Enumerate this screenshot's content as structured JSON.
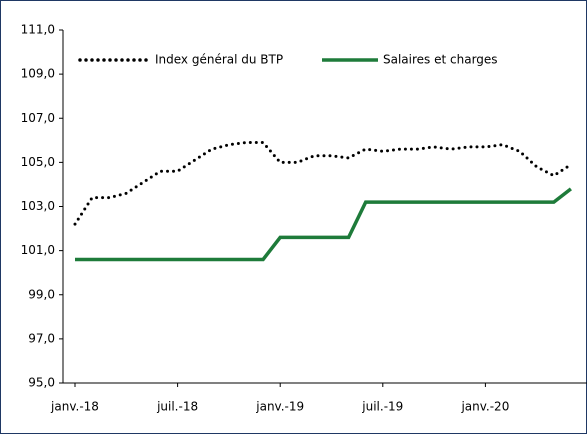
{
  "chart_data": {
    "type": "line",
    "categories": [
      "janv.-18",
      null,
      null,
      null,
      null,
      null,
      "juil.-18",
      null,
      null,
      null,
      null,
      null,
      "janv.-19",
      null,
      null,
      null,
      null,
      null,
      "juil.-19",
      null,
      null,
      null,
      null,
      null,
      "janv.-20",
      null,
      null,
      null,
      null,
      null
    ],
    "series": [
      {
        "name": "Index général du BTP",
        "color": "#000000",
        "style": "dotted",
        "values": [
          102.2,
          103.4,
          103.4,
          103.6,
          104.1,
          104.6,
          104.6,
          105.1,
          105.6,
          105.8,
          105.9,
          105.9,
          105.0,
          105.0,
          105.3,
          105.3,
          105.2,
          105.6,
          105.5,
          105.6,
          105.6,
          105.7,
          105.6,
          105.7,
          105.7,
          105.8,
          105.5,
          104.8,
          104.4,
          104.9
        ]
      },
      {
        "name": "Salaires et charges",
        "color": "#1e7b3a",
        "style": "solid",
        "values": [
          100.6,
          100.6,
          100.6,
          100.6,
          100.6,
          100.6,
          100.6,
          100.6,
          100.6,
          100.6,
          100.6,
          100.6,
          101.6,
          101.6,
          101.6,
          101.6,
          101.6,
          103.2,
          103.2,
          103.2,
          103.2,
          103.2,
          103.2,
          103.2,
          103.2,
          103.2,
          103.2,
          103.2,
          103.2,
          103.8
        ]
      }
    ],
    "ylim": [
      95,
      111
    ],
    "yticks": [
      {
        "value": 95,
        "label": "95,0"
      },
      {
        "value": 97,
        "label": "97,0"
      },
      {
        "value": 99,
        "label": "99,0"
      },
      {
        "value": 101,
        "label": "101,0"
      },
      {
        "value": 103,
        "label": "103,0"
      },
      {
        "value": 105,
        "label": "105,0"
      },
      {
        "value": 107,
        "label": "107,0"
      },
      {
        "value": 109,
        "label": "109,0"
      },
      {
        "value": 111,
        "label": "111,0"
      }
    ],
    "legend": "top"
  }
}
